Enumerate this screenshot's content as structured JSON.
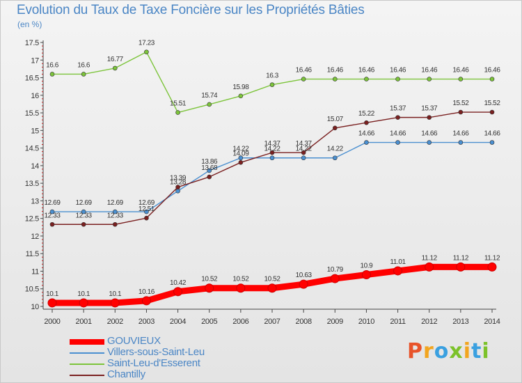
{
  "title": "Evolution du Taux de Taxe Foncière sur les Propriétés Bâties",
  "unit": "(en %)",
  "logo": {
    "text": "Proxiti",
    "colors": [
      "#e8532a",
      "#f2a51f",
      "#3aa0e0",
      "#7cc22a",
      "#f2a51f",
      "#3aa0e0",
      "#7cc22a"
    ]
  },
  "chart_data": {
    "type": "line",
    "title": "Evolution du Taux de Taxe Foncière sur les Propriétés Bâties",
    "ylabel": "(en %)",
    "xlabel": "",
    "ylim": [
      10,
      17.5
    ],
    "grid": false,
    "legend_position": "bottom-left",
    "x": [
      "2000",
      "2001",
      "2002",
      "2003",
      "2004",
      "2005",
      "2006",
      "2007",
      "2008",
      "2009",
      "2010",
      "2011",
      "2012",
      "2013",
      "2014"
    ],
    "y_ticks": [
      "10",
      "10.5",
      "11",
      "11.5",
      "12",
      "12.5",
      "13",
      "13.5",
      "14",
      "14.5",
      "15",
      "15.5",
      "16",
      "16.5",
      "17",
      "17.5"
    ],
    "series": [
      {
        "name": "GOUVIEUX",
        "color": "#ff0000",
        "values": [
          10.1,
          10.1,
          10.1,
          10.16,
          10.42,
          10.52,
          10.52,
          10.52,
          10.63,
          10.79,
          10.9,
          11.01,
          11.12,
          11.12,
          11.12
        ],
        "labels": [
          "10.1",
          "10.1",
          "10.1",
          "10.16",
          "10.42",
          "10.52",
          "10.52",
          "10.52",
          "10.63",
          "10.79",
          "10.9",
          "11.01",
          "11.12",
          "11.12",
          "11.12"
        ]
      },
      {
        "name": "Villers-sous-Saint-Leu",
        "color": "#4a8fd0",
        "values": [
          12.69,
          12.69,
          12.69,
          12.69,
          13.28,
          13.86,
          14.22,
          14.22,
          14.22,
          14.22,
          14.66,
          14.66,
          14.66,
          14.66,
          14.66
        ],
        "labels": [
          "12.69",
          "12.69",
          "12.69",
          "12.69",
          "13.28",
          "13.86",
          "14.22",
          "14.22",
          "14.22",
          "14.22",
          "14.66",
          "14.66",
          "14.66",
          "14.66",
          "14.66"
        ]
      },
      {
        "name": "Saint-Leu-d'Esserent",
        "color": "#7cc43a",
        "values": [
          16.6,
          16.6,
          16.77,
          17.23,
          15.51,
          15.74,
          15.98,
          16.3,
          16.46,
          16.46,
          16.46,
          16.46,
          16.46,
          16.46,
          16.46
        ],
        "labels": [
          "16.6",
          "16.6",
          "16.77",
          "17.23",
          "15.51",
          "15.74",
          "15.98",
          "16.3",
          "16.46",
          "16.46",
          "16.46",
          "16.46",
          "16.46",
          "16.46",
          "16.46"
        ]
      },
      {
        "name": "Chantilly",
        "color": "#7a2020",
        "values": [
          12.33,
          12.33,
          12.33,
          12.51,
          13.39,
          13.68,
          14.09,
          14.37,
          14.37,
          15.07,
          15.22,
          15.37,
          15.37,
          15.52,
          15.52
        ],
        "labels": [
          "12.33",
          "12.33",
          "12.33",
          "12.51",
          "13.39",
          "13.68",
          "14.09",
          "14.37",
          "14.37",
          "15.07",
          "15.22",
          "15.37",
          "15.37",
          "15.52",
          "15.52"
        ]
      }
    ]
  }
}
